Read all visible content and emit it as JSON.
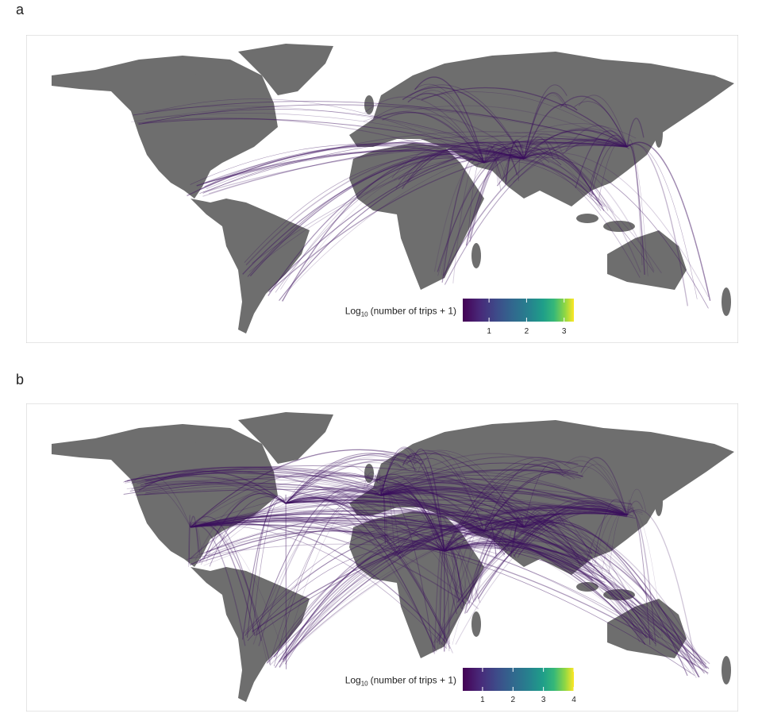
{
  "panels": [
    {
      "label": "a",
      "legend": {
        "title_base": "Log",
        "title_subscript": "10",
        "title_rest": "(number of trips + 1)",
        "lim": [
          0.3,
          3.26
        ],
        "ticks": [
          1,
          2,
          3
        ]
      }
    },
    {
      "label": "b",
      "legend": {
        "title_base": "Log",
        "title_subscript": "10",
        "title_rest": "(number of trips + 1)",
        "lim": [
          0.35,
          4.0
        ],
        "ticks": [
          1,
          2,
          3,
          4
        ]
      }
    }
  ]
}
